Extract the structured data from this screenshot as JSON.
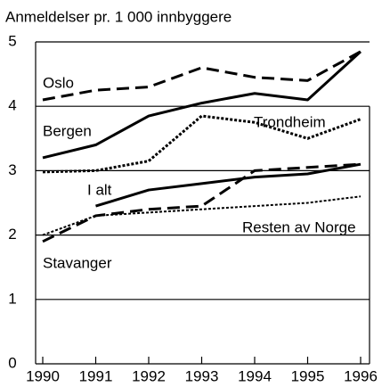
{
  "chart_data": {
    "type": "line",
    "title": "Anmeldelser pr. 1 000 innbyggere",
    "x": [
      1990,
      1991,
      1992,
      1993,
      1994,
      1995,
      1996
    ],
    "xlim": [
      1990,
      1996
    ],
    "xticks": [
      1990,
      1991,
      1992,
      1993,
      1994,
      1995,
      1996
    ],
    "ylim": [
      0,
      5
    ],
    "yticks": [
      0,
      1,
      2,
      3,
      4,
      5
    ],
    "grid": true,
    "series": [
      {
        "name": "Oslo",
        "color": "#000000",
        "style": "dashed",
        "values": [
          4.1,
          4.25,
          4.3,
          4.6,
          4.45,
          4.4,
          4.85
        ]
      },
      {
        "name": "Bergen",
        "color": "#000000",
        "style": "solid",
        "values": [
          3.2,
          3.4,
          3.85,
          4.05,
          4.2,
          4.1,
          4.85
        ]
      },
      {
        "name": "Trondheim",
        "color": "#000000",
        "style": "dotted",
        "values": [
          2.98,
          3.0,
          3.15,
          3.85,
          3.75,
          3.5,
          3.8
        ]
      },
      {
        "name": "I alt",
        "color": "#000000",
        "style": "solid",
        "values": [
          null,
          2.45,
          2.7,
          2.8,
          2.9,
          2.95,
          3.1
        ]
      },
      {
        "name": "Resten av Norge",
        "color": "#000000",
        "style": "thin-dotted",
        "values": [
          2.0,
          2.3,
          2.35,
          2.4,
          2.45,
          2.5,
          2.6
        ]
      },
      {
        "name": "Stavanger",
        "color": "#000000",
        "style": "dashed",
        "values": [
          1.9,
          2.3,
          2.4,
          2.45,
          3.0,
          3.05,
          3.1
        ]
      }
    ]
  }
}
